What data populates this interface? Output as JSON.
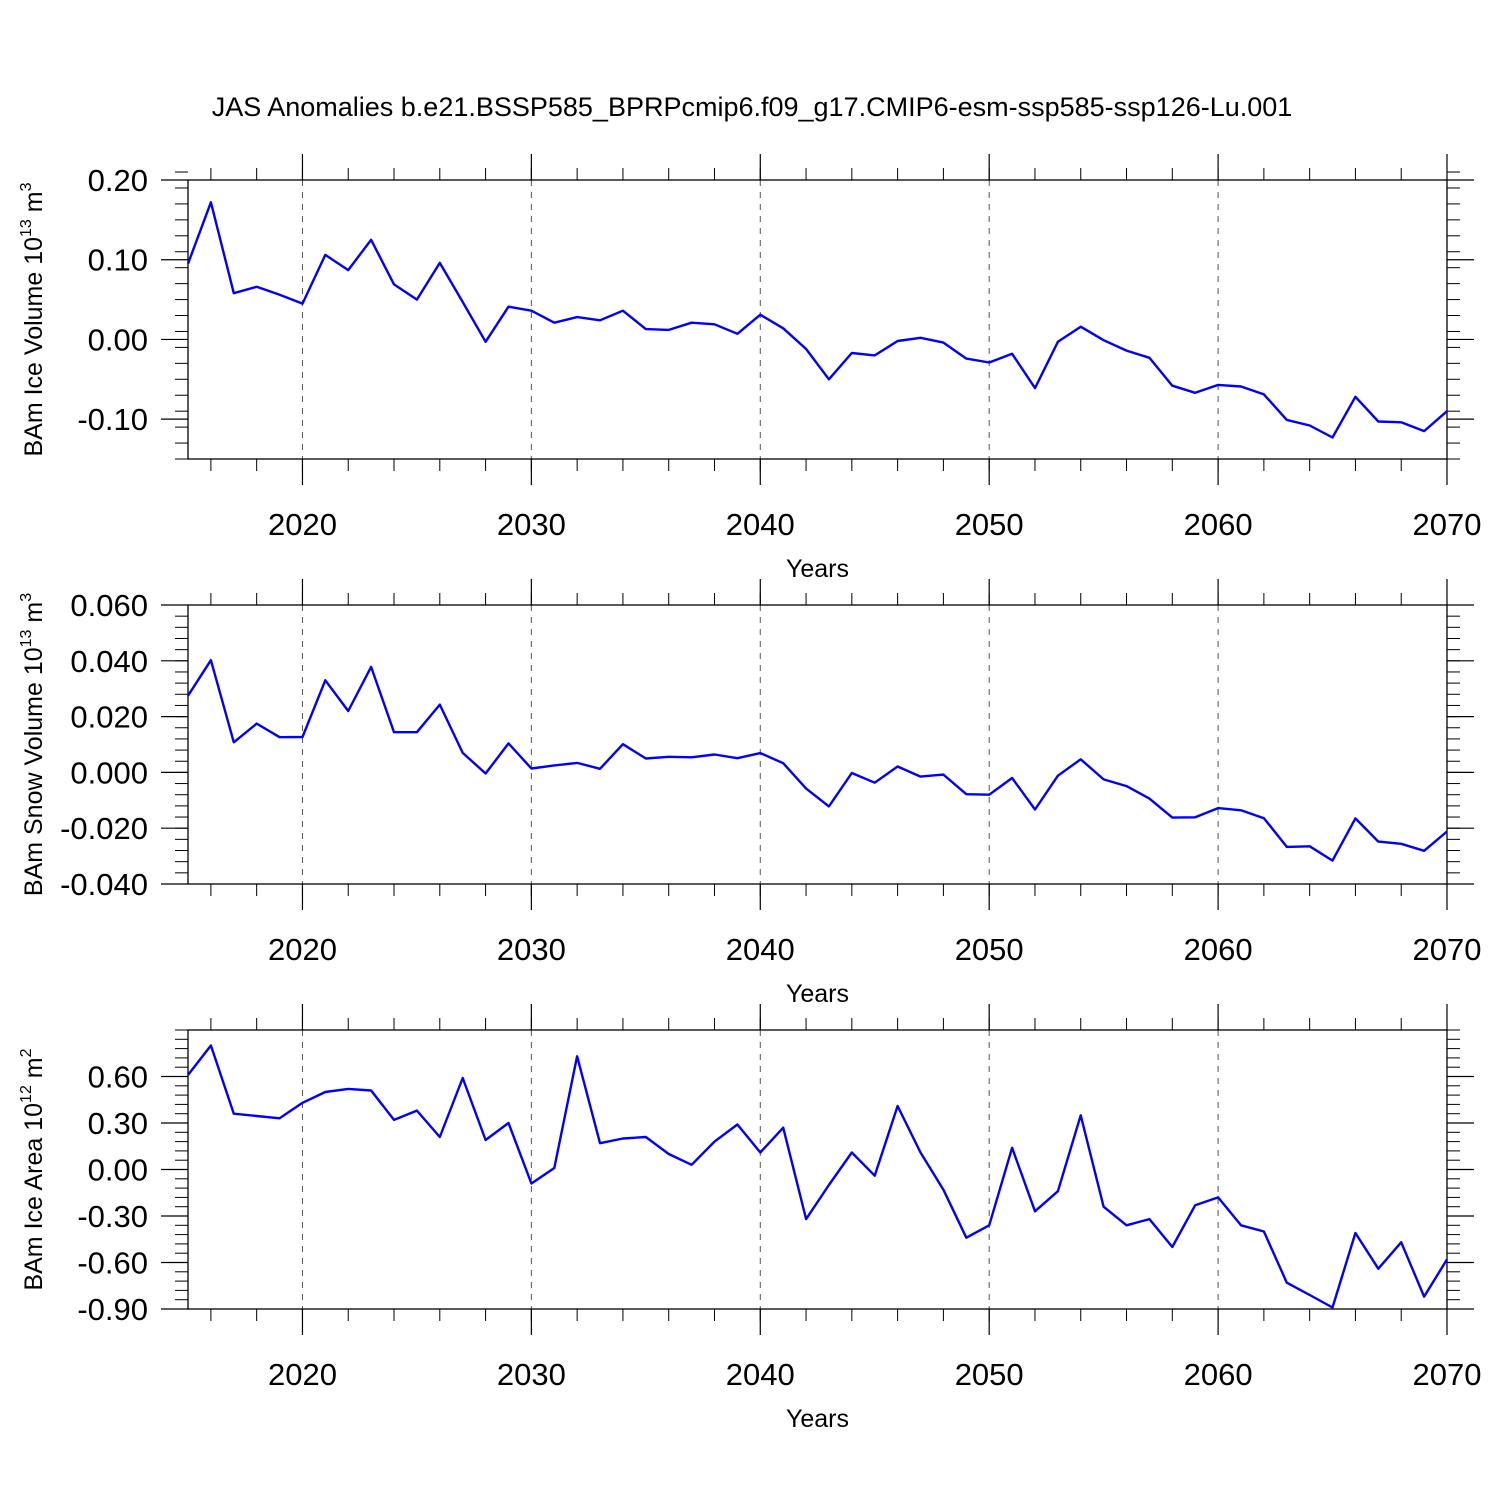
{
  "title": "JAS Anomalies b.e21.BSSP585_BPRPcmip6.f09_g17.CMIP6-esm-ssp585-ssp126-Lu.001",
  "line_color": "#0000ff",
  "chart_data": [
    {
      "type": "line",
      "ylabel": {
        "main": "BAm Ice Volume 10",
        "sup": "13",
        "unit": " m",
        "unit_sup": "3"
      },
      "xlabel": "Years",
      "xlim": [
        2015,
        2070
      ],
      "ylim": [
        -0.15,
        0.2
      ],
      "x_ticks": [
        "2020",
        "2030",
        "2040",
        "2050",
        "2060",
        "2070"
      ],
      "y_ticks": [
        "0.20",
        "0.10",
        "0.00",
        "-0.10"
      ],
      "y_tick_values": [
        0.2,
        0.1,
        0.0,
        -0.1
      ],
      "x": [
        2015,
        2016,
        2017,
        2018,
        2019,
        2020,
        2021,
        2022,
        2023,
        2024,
        2025,
        2026,
        2027,
        2028,
        2029,
        2030,
        2031,
        2032,
        2033,
        2034,
        2035,
        2036,
        2037,
        2038,
        2039,
        2040,
        2041,
        2042,
        2043,
        2044,
        2045,
        2046,
        2047,
        2048,
        2049,
        2050,
        2051,
        2052,
        2053,
        2054,
        2055,
        2056,
        2057,
        2058,
        2059,
        2060,
        2061,
        2062,
        2063,
        2064,
        2065,
        2066,
        2067,
        2068,
        2069,
        2070
      ],
      "series": [
        {
          "values": [
            0.095,
            0.172,
            0.058,
            0.066,
            0.056,
            0.045,
            0.106,
            0.087,
            0.125,
            0.069,
            0.05,
            0.096,
            0.047,
            -0.003,
            0.041,
            0.036,
            0.021,
            0.028,
            0.024,
            0.036,
            0.013,
            0.012,
            0.021,
            0.019,
            0.007,
            0.031,
            0.014,
            -0.012,
            -0.05,
            -0.017,
            -0.02,
            -0.002,
            0.002,
            -0.004,
            -0.024,
            -0.029,
            -0.018,
            -0.061,
            -0.003,
            0.016,
            -0.001,
            -0.014,
            -0.023,
            -0.058,
            -0.067,
            -0.057,
            -0.059,
            -0.069,
            -0.101,
            -0.108,
            -0.123,
            -0.072,
            -0.103,
            -0.104,
            -0.115,
            -0.09
          ]
        }
      ]
    },
    {
      "type": "line",
      "ylabel": {
        "main": "BAm Snow Volume 10",
        "sup": "13",
        "unit": " m",
        "unit_sup": "3"
      },
      "xlabel": "Years",
      "xlim": [
        2015,
        2070
      ],
      "ylim": [
        -0.04,
        0.06
      ],
      "x_ticks": [
        "2020",
        "2030",
        "2040",
        "2050",
        "2060",
        "2070"
      ],
      "y_ticks": [
        "0.060",
        "0.040",
        "0.020",
        "0.000",
        "-0.020",
        "-0.040"
      ],
      "y_tick_values": [
        0.06,
        0.04,
        0.02,
        0.0,
        -0.02,
        -0.04
      ],
      "x": [
        2015,
        2016,
        2017,
        2018,
        2019,
        2020,
        2021,
        2022,
        2023,
        2024,
        2025,
        2026,
        2027,
        2028,
        2029,
        2030,
        2031,
        2032,
        2033,
        2034,
        2035,
        2036,
        2037,
        2038,
        2039,
        2040,
        2041,
        2042,
        2043,
        2044,
        2045,
        2046,
        2047,
        2048,
        2049,
        2050,
        2051,
        2052,
        2053,
        2054,
        2055,
        2056,
        2057,
        2058,
        2059,
        2060,
        2061,
        2062,
        2063,
        2064,
        2065,
        2066,
        2067,
        2068,
        2069,
        2070
      ],
      "series": [
        {
          "values": [
            0.0275,
            0.0402,
            0.0108,
            0.0175,
            0.0126,
            0.0127,
            0.033,
            0.022,
            0.0378,
            0.0144,
            0.0144,
            0.0243,
            0.007,
            -0.0004,
            0.0104,
            0.0014,
            0.0025,
            0.0034,
            0.0013,
            0.0101,
            0.005,
            0.0056,
            0.0054,
            0.0064,
            0.0051,
            0.0069,
            0.0033,
            -0.0058,
            -0.0122,
            -0.0002,
            -0.0037,
            0.0021,
            -0.0015,
            -0.0008,
            -0.0078,
            -0.008,
            -0.002,
            -0.0133,
            -0.0012,
            0.0047,
            -0.0025,
            -0.0049,
            -0.0094,
            -0.0162,
            -0.0161,
            -0.0128,
            -0.0136,
            -0.0164,
            -0.0267,
            -0.0265,
            -0.0316,
            -0.0165,
            -0.0248,
            -0.0256,
            -0.0281,
            -0.0212
          ]
        }
      ]
    },
    {
      "type": "line",
      "ylabel": {
        "main": "BAm Ice Area 10",
        "sup": "12",
        "unit": " m",
        "unit_sup": "2"
      },
      "xlabel": "Years",
      "xlim": [
        2015,
        2070
      ],
      "ylim": [
        -0.9,
        0.9
      ],
      "x_ticks": [
        "2020",
        "2030",
        "2040",
        "2050",
        "2060",
        "2070"
      ],
      "y_ticks": [
        "0.60",
        "0.30",
        "0.00",
        "-0.30",
        "-0.60",
        "-0.90"
      ],
      "y_tick_values": [
        0.6,
        0.3,
        0.0,
        -0.3,
        -0.6,
        -0.9
      ],
      "x": [
        2015,
        2016,
        2017,
        2018,
        2019,
        2020,
        2021,
        2022,
        2023,
        2024,
        2025,
        2026,
        2027,
        2028,
        2029,
        2030,
        2031,
        2032,
        2033,
        2034,
        2035,
        2036,
        2037,
        2038,
        2039,
        2040,
        2041,
        2042,
        2043,
        2044,
        2045,
        2046,
        2047,
        2048,
        2049,
        2050,
        2051,
        2052,
        2053,
        2054,
        2055,
        2056,
        2057,
        2058,
        2059,
        2060,
        2061,
        2062,
        2063,
        2064,
        2065,
        2066,
        2067,
        2068,
        2069,
        2070
      ],
      "series": [
        {
          "values": [
            0.61,
            0.8,
            0.36,
            0.345,
            0.33,
            0.43,
            0.5,
            0.52,
            0.51,
            0.32,
            0.38,
            0.21,
            0.59,
            0.19,
            0.3,
            -0.09,
            0.01,
            0.73,
            0.17,
            0.2,
            0.21,
            0.1,
            0.03,
            0.18,
            0.29,
            0.11,
            0.27,
            -0.32,
            -0.1,
            0.11,
            -0.04,
            0.41,
            0.11,
            -0.13,
            -0.44,
            -0.36,
            0.14,
            -0.27,
            -0.14,
            0.35,
            -0.24,
            -0.36,
            -0.32,
            -0.5,
            -0.23,
            -0.18,
            -0.36,
            -0.4,
            -0.73,
            -0.81,
            -0.89,
            -0.41,
            -0.64,
            -0.47,
            -0.82,
            -0.58
          ]
        }
      ]
    }
  ]
}
